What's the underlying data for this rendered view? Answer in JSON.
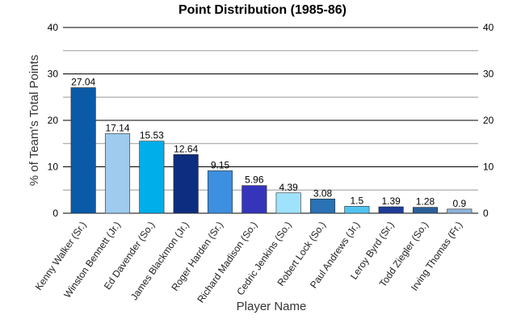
{
  "chart_data": {
    "type": "bar",
    "title": "Point Distribution (1985-86)",
    "xlabel": "Player Name",
    "ylabel": "% of Team's Total Points",
    "ylim": [
      0,
      40
    ],
    "yticks": [
      0,
      10,
      20,
      30,
      40
    ],
    "grid": true,
    "legend": "none",
    "categories": [
      "Kenny Walker (Sr.)",
      "Winston Bennett (Jr.)",
      "Ed Davender (So.)",
      "James Blackmon (Jr.)",
      "Roger Harden (Sr.)",
      "Richard Madison (So.)",
      "Cedric Jenkins (So.)",
      "Robert Lock (So.)",
      "Paul Andrews (Jr.)",
      "Leroy Byrd (Sr.)",
      "Todd Ziegler (So.)",
      "Irving Thomas (Fr.)"
    ],
    "values": [
      27.04,
      17.14,
      15.53,
      12.64,
      9.15,
      5.96,
      4.39,
      3.08,
      1.5,
      1.39,
      1.28,
      0.9
    ],
    "value_labels": [
      "27.04",
      "17.14",
      "15.53",
      "12.64",
      "9.15",
      "5.96",
      "4.39",
      "3.08",
      "1.5",
      "1.39",
      "1.28",
      "0.9"
    ],
    "colors": [
      "#0b5aa8",
      "#9ecbee",
      "#00aeea",
      "#0d2d80",
      "#3d8fdf",
      "#3535bb",
      "#9fe2fb",
      "#2a72b4",
      "#52c4f2",
      "#1e3d99",
      "#2b5f98",
      "#8fb3d9"
    ]
  }
}
